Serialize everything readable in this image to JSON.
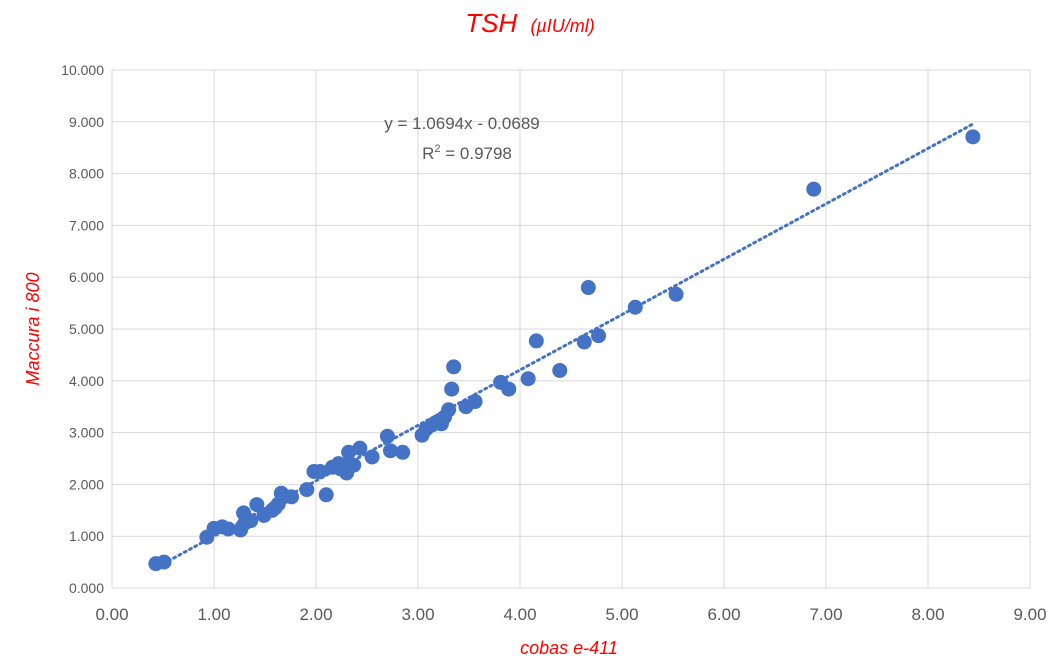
{
  "chart_data": {
    "type": "scatter",
    "title": "TSH",
    "title_unit": "(µIU/ml)",
    "xlabel": "cobas e-411",
    "ylabel": "Maccura i 800",
    "xlim": [
      0,
      9
    ],
    "ylim": [
      0,
      10
    ],
    "x_ticks": [
      "0.00",
      "1.00",
      "2.00",
      "3.00",
      "4.00",
      "5.00",
      "6.00",
      "7.00",
      "8.00",
      "9.00"
    ],
    "y_ticks": [
      "0.000",
      "1.000",
      "2.000",
      "3.000",
      "4.000",
      "5.000",
      "6.000",
      "7.000",
      "8.000",
      "9.000",
      "10.000"
    ],
    "grid": true,
    "marker_color": "#4472c4",
    "trendline": {
      "type": "linear",
      "slope": 1.0694,
      "intercept": -0.0689,
      "x_range": [
        0.45,
        8.45
      ],
      "color": "#4472c4",
      "style": "dotted",
      "equation": "y = 1.0694x - 0.0689",
      "r2_prefix": "R",
      "r2_sup": "2",
      "r2_suffix": " = 0.9798"
    },
    "points": [
      [
        0.43,
        0.47
      ],
      [
        0.51,
        0.5
      ],
      [
        0.93,
        0.98
      ],
      [
        1.0,
        1.15
      ],
      [
        1.08,
        1.18
      ],
      [
        1.14,
        1.14
      ],
      [
        1.26,
        1.12
      ],
      [
        1.29,
        1.45
      ],
      [
        1.3,
        1.25
      ],
      [
        1.36,
        1.3
      ],
      [
        1.42,
        1.61
      ],
      [
        1.49,
        1.4
      ],
      [
        1.57,
        1.5
      ],
      [
        1.6,
        1.55
      ],
      [
        1.63,
        1.62
      ],
      [
        1.66,
        1.83
      ],
      [
        1.7,
        1.77
      ],
      [
        1.76,
        1.76
      ],
      [
        1.91,
        1.9
      ],
      [
        1.98,
        2.25
      ],
      [
        2.04,
        2.25
      ],
      [
        2.1,
        1.8
      ],
      [
        2.16,
        2.33
      ],
      [
        2.22,
        2.4
      ],
      [
        2.24,
        2.3
      ],
      [
        2.28,
        2.37
      ],
      [
        2.3,
        2.22
      ],
      [
        2.32,
        2.62
      ],
      [
        2.37,
        2.37
      ],
      [
        2.43,
        2.7
      ],
      [
        2.55,
        2.53
      ],
      [
        2.7,
        2.93
      ],
      [
        2.73,
        2.65
      ],
      [
        2.85,
        2.62
      ],
      [
        3.04,
        2.95
      ],
      [
        3.08,
        3.07
      ],
      [
        3.14,
        3.15
      ],
      [
        3.2,
        3.22
      ],
      [
        3.23,
        3.17
      ],
      [
        3.26,
        3.3
      ],
      [
        3.3,
        3.44
      ],
      [
        3.33,
        3.84
      ],
      [
        3.35,
        4.27
      ],
      [
        3.47,
        3.5
      ],
      [
        3.56,
        3.6
      ],
      [
        3.81,
        3.97
      ],
      [
        3.89,
        3.84
      ],
      [
        4.08,
        4.04
      ],
      [
        4.16,
        4.77
      ],
      [
        4.39,
        4.2
      ],
      [
        4.63,
        4.75
      ],
      [
        4.67,
        5.8
      ],
      [
        4.77,
        4.87
      ],
      [
        5.13,
        5.42
      ],
      [
        5.53,
        5.67
      ],
      [
        6.88,
        7.7
      ],
      [
        8.44,
        8.71
      ]
    ]
  }
}
